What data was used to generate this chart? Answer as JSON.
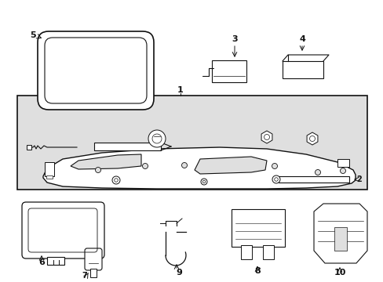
{
  "bg_color": "#ffffff",
  "box_bg": "#e0e0e0",
  "lc": "#111111",
  "lw": 0.8,
  "figsize": [
    4.89,
    3.6
  ],
  "dpi": 100
}
